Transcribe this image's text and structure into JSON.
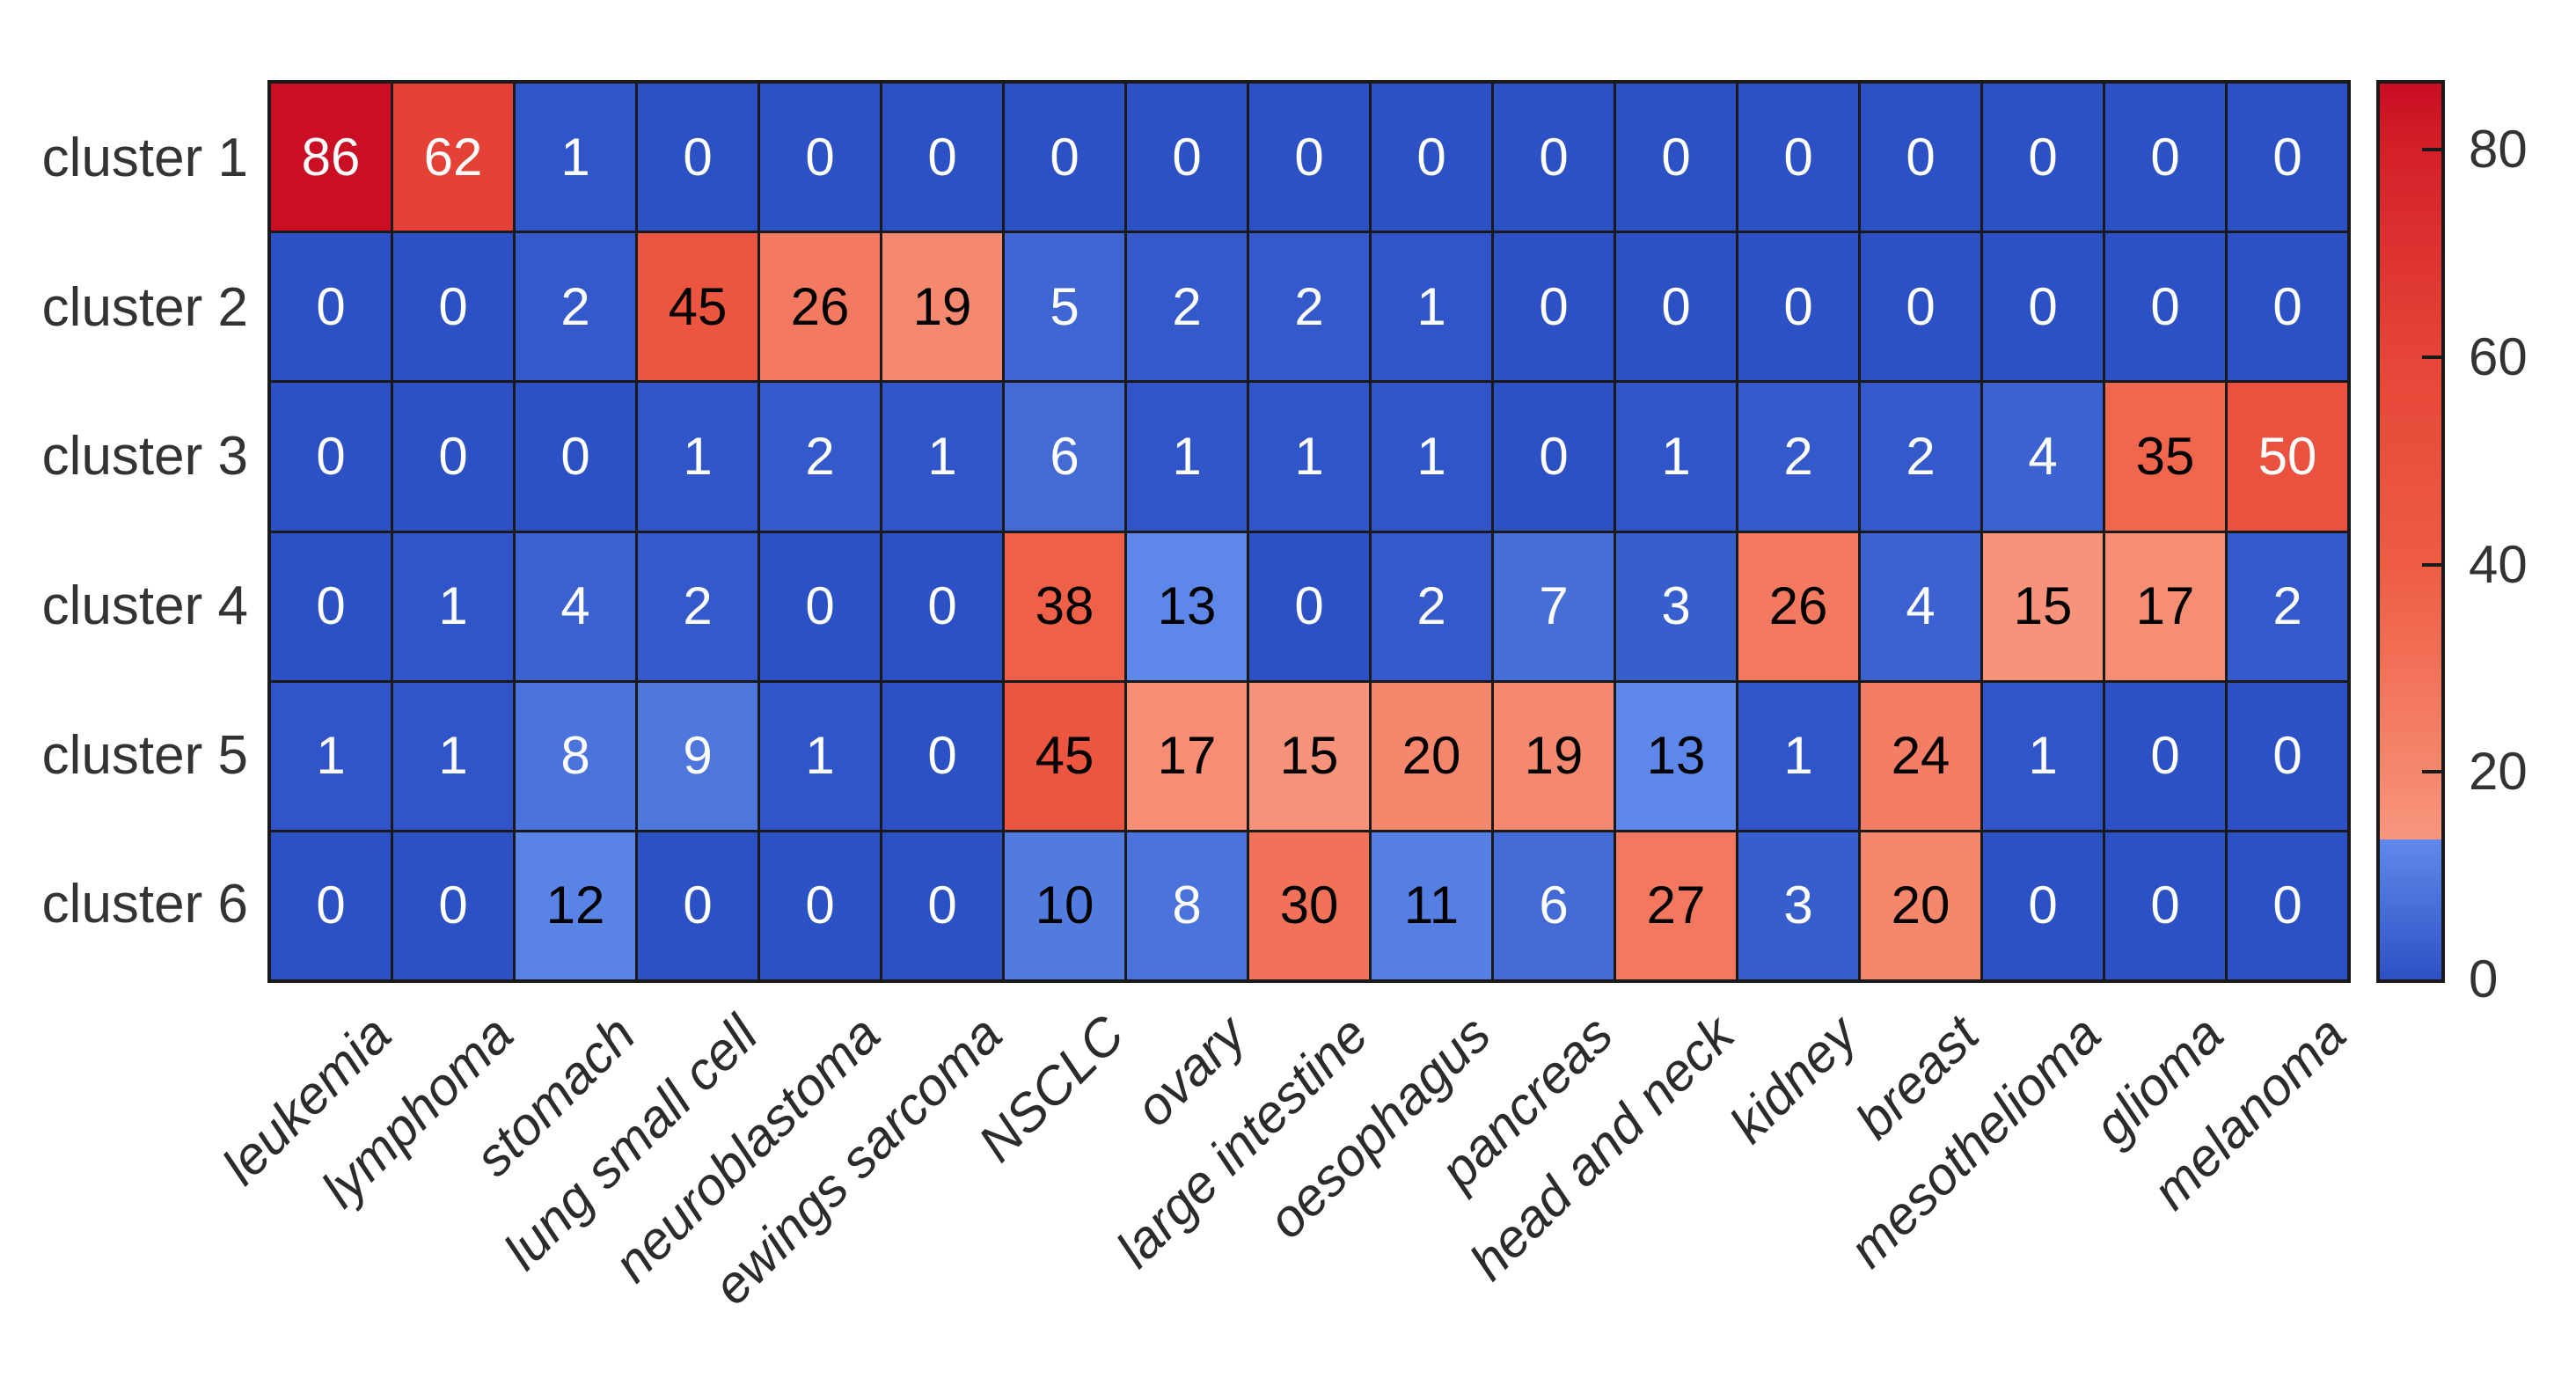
{
  "figure": {
    "background": "#ffffff",
    "grid_line_color": "#1a1a1a",
    "label_color": "#333333"
  },
  "chart_data": {
    "type": "heatmap",
    "rows": [
      "cluster 1",
      "cluster 2",
      "cluster 3",
      "cluster 4",
      "cluster 5",
      "cluster 6"
    ],
    "columns": [
      "leukemia",
      "lymphoma",
      "stomach",
      "lung small cell",
      "neuroblastoma",
      "ewings sarcoma",
      "NSCLC",
      "ovary",
      "large intestine",
      "oesophagus",
      "pancreas",
      "head and neck",
      "kidney",
      "breast",
      "mesothelioma",
      "glioma",
      "melanoma"
    ],
    "values": [
      [
        86,
        62,
        1,
        0,
        0,
        0,
        0,
        0,
        0,
        0,
        0,
        0,
        0,
        0,
        0,
        0,
        0
      ],
      [
        0,
        0,
        2,
        45,
        26,
        19,
        5,
        2,
        2,
        1,
        0,
        0,
        0,
        0,
        0,
        0,
        0
      ],
      [
        0,
        0,
        0,
        1,
        2,
        1,
        6,
        1,
        1,
        1,
        0,
        1,
        2,
        2,
        4,
        35,
        50
      ],
      [
        0,
        1,
        4,
        2,
        0,
        0,
        38,
        13,
        0,
        2,
        7,
        3,
        26,
        4,
        15,
        17,
        2
      ],
      [
        1,
        1,
        8,
        9,
        1,
        0,
        45,
        17,
        15,
        20,
        19,
        13,
        1,
        24,
        1,
        0,
        0
      ],
      [
        0,
        0,
        12,
        0,
        0,
        0,
        10,
        8,
        30,
        11,
        6,
        27,
        3,
        20,
        0,
        0,
        0
      ]
    ],
    "colorbar": {
      "tick_labels": [
        "80",
        "60",
        "40",
        "20",
        "0"
      ],
      "tick_values": [
        80,
        60,
        40,
        20,
        0
      ],
      "scale_min": 0,
      "scale_max": 86.4,
      "legend_position": "right"
    },
    "colormap": {
      "split": 13.5,
      "vmax": 86.4,
      "blue_low": "#2C51C5",
      "blue_high": "#5F8AEA",
      "red_stops": [
        {
          "v": 13.5,
          "hex": "#F7977E"
        },
        {
          "v": 20,
          "hex": "#F5876D"
        },
        {
          "v": 40,
          "hex": "#EE5C44"
        },
        {
          "v": 60,
          "hex": "#E64538"
        },
        {
          "v": 80,
          "hex": "#D42029"
        },
        {
          "v": 86.4,
          "hex": "#C90D23"
        }
      ],
      "cell_text_black": "#000000",
      "cell_text_white": "#ffffff"
    },
    "title": "",
    "xlabel": "",
    "ylabel": "",
    "grid": "on"
  }
}
